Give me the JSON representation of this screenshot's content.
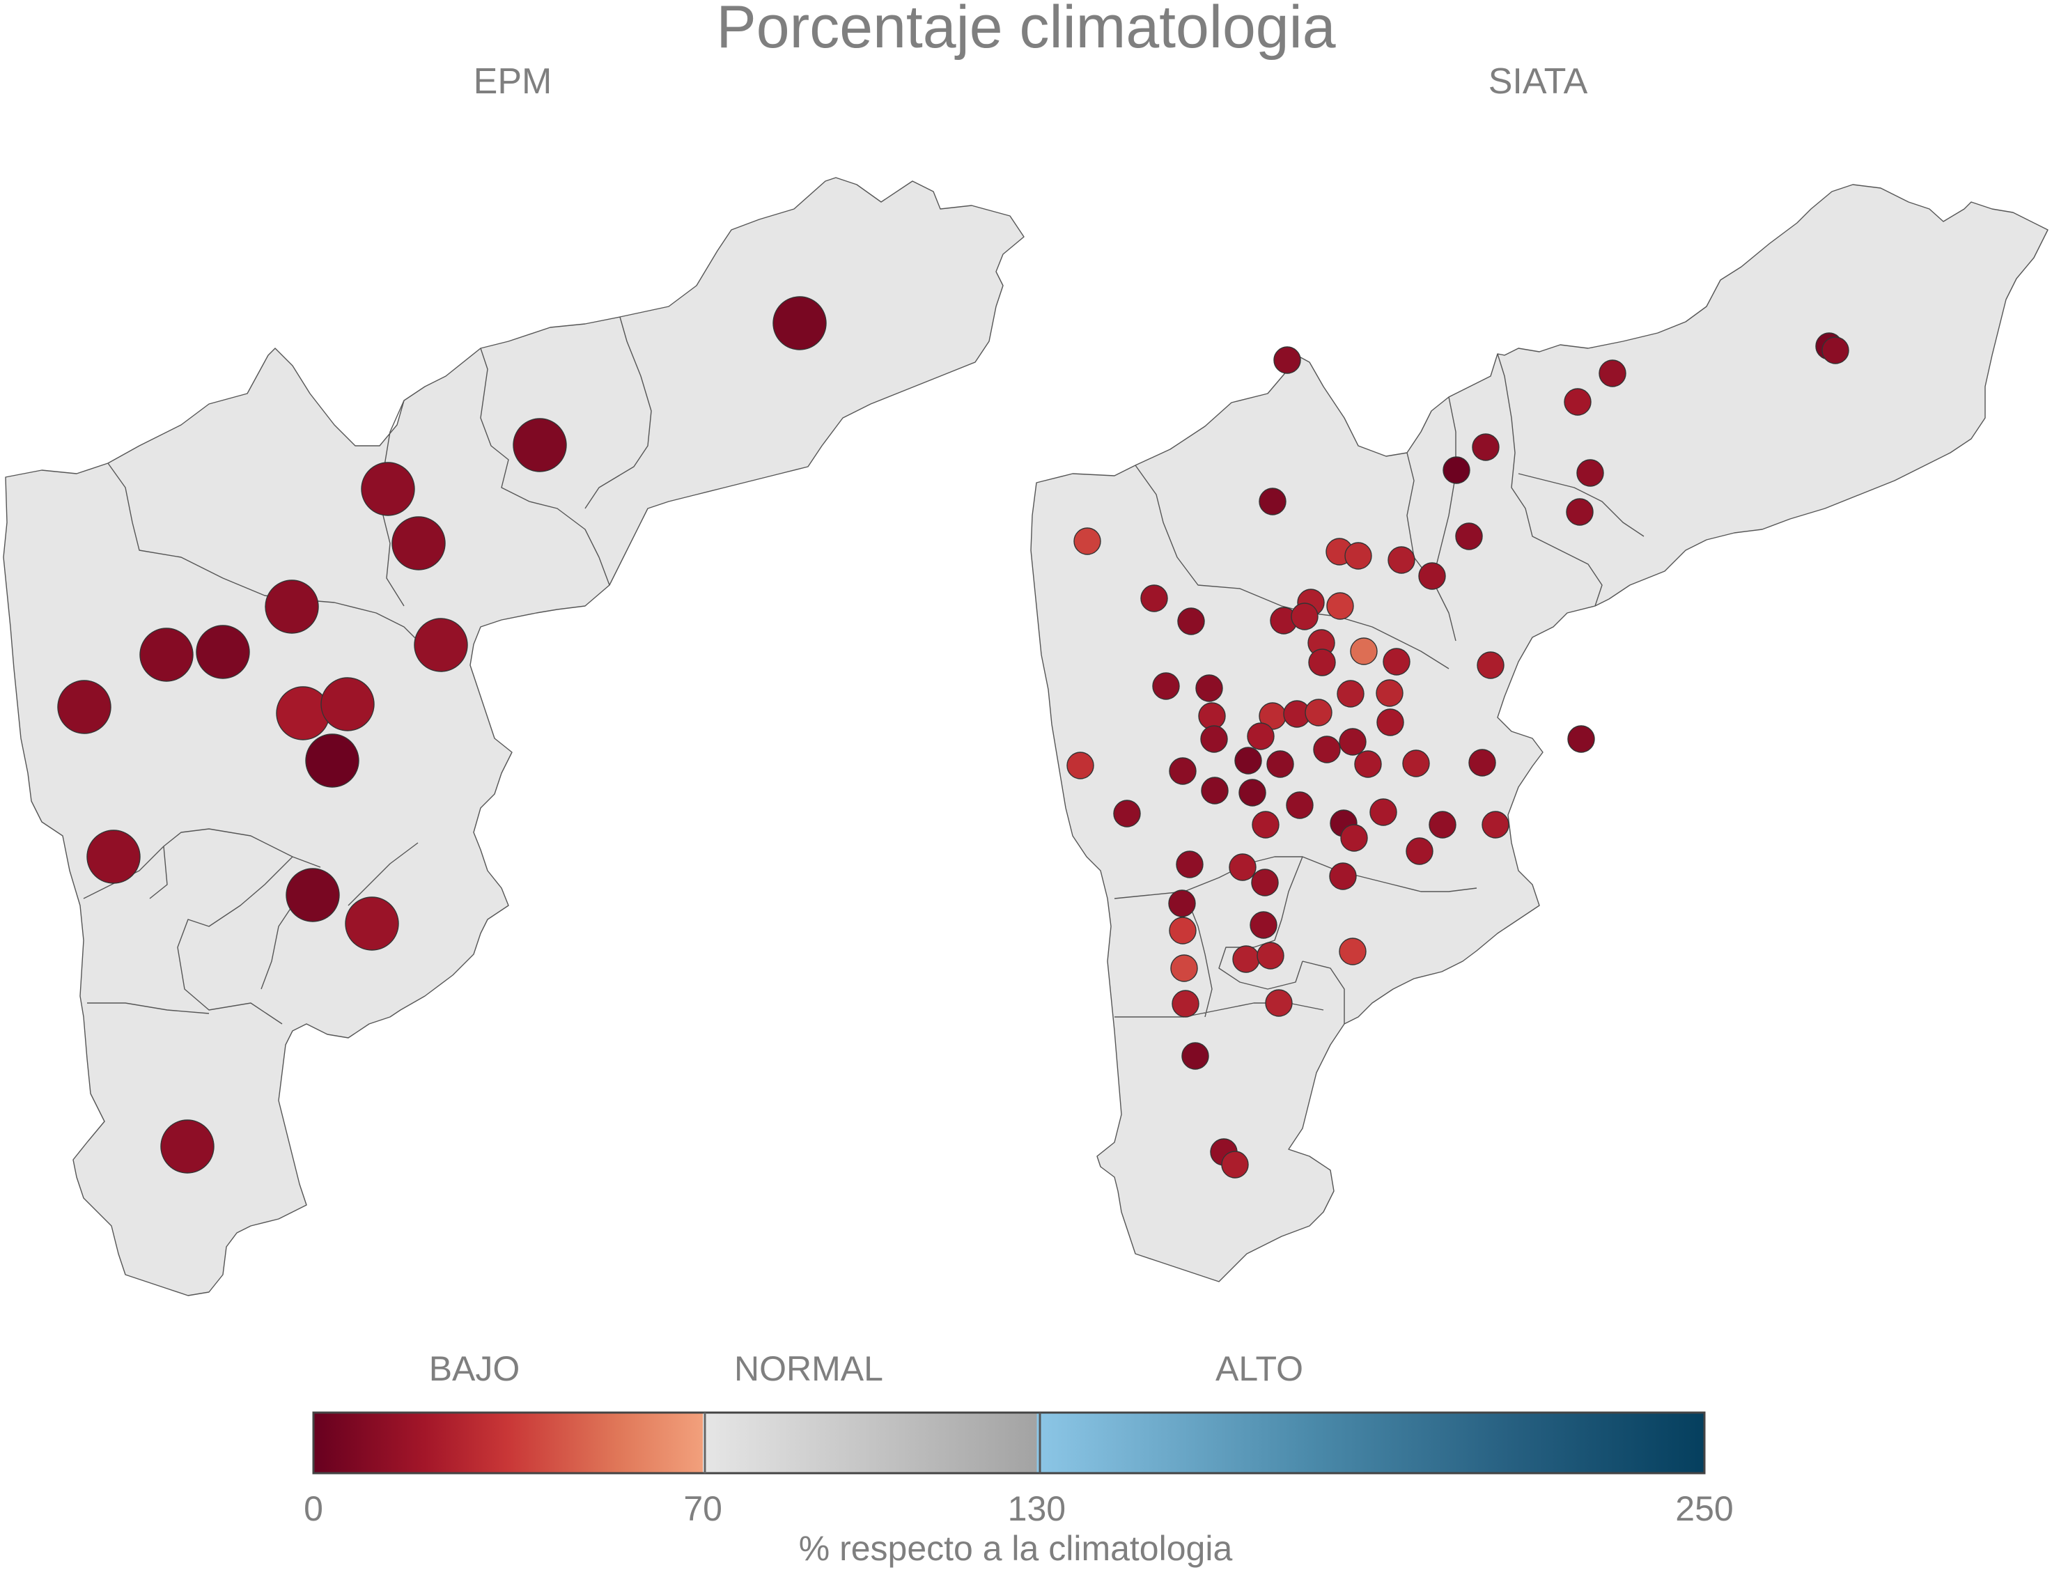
{
  "title": "Porcentaje climatologia",
  "panels": [
    {
      "name": "EPM",
      "title": "EPM",
      "marker": "large",
      "stations": [
        [
          1148,
          464,
          "r06"
        ],
        [
          775,
          639,
          "r08"
        ],
        [
          557,
          702,
          "r13"
        ],
        [
          601,
          780,
          "r12"
        ],
        [
          633,
          926,
          "r15"
        ],
        [
          419,
          871,
          "r12"
        ],
        [
          320,
          936,
          "r07"
        ],
        [
          239,
          940,
          "r10"
        ],
        [
          121,
          1015,
          "r12"
        ],
        [
          435,
          1024,
          "r21"
        ],
        [
          499,
          1011,
          "r18"
        ],
        [
          477,
          1092,
          "r02"
        ],
        [
          163,
          1230,
          "r14"
        ],
        [
          449,
          1285,
          "r06"
        ],
        [
          534,
          1326,
          "r17"
        ],
        [
          269,
          1646,
          "r13"
        ]
      ]
    },
    {
      "name": "SIATA",
      "title": "SIATA",
      "marker": "small",
      "stations": [
        [
          1848,
          517,
          "r12"
        ],
        [
          2315,
          536,
          "r15"
        ],
        [
          2626,
          497,
          "r06"
        ],
        [
          2635,
          503,
          "r12"
        ],
        [
          2265,
          577,
          "r20"
        ],
        [
          2133,
          642,
          "r13"
        ],
        [
          2091,
          675,
          "r02"
        ],
        [
          2283,
          679,
          "r14"
        ],
        [
          1827,
          720,
          "r08"
        ],
        [
          2268,
          735,
          "r14"
        ],
        [
          1561,
          777,
          "r38"
        ],
        [
          2109,
          770,
          "r13"
        ],
        [
          1923,
          792,
          "r32"
        ],
        [
          1950,
          798,
          "r30"
        ],
        [
          2012,
          804,
          "r24"
        ],
        [
          2056,
          827,
          "r18"
        ],
        [
          1657,
          859,
          "r18"
        ],
        [
          1882,
          865,
          "r24"
        ],
        [
          1924,
          870,
          "r36"
        ],
        [
          1710,
          892,
          "r12"
        ],
        [
          1843,
          891,
          "r19"
        ],
        [
          1873,
          885,
          "r22"
        ],
        [
          1897,
          923,
          "r24"
        ],
        [
          1958,
          935,
          "r52"
        ],
        [
          1898,
          951,
          "r21"
        ],
        [
          2005,
          950,
          "r22"
        ],
        [
          2140,
          955,
          "r23"
        ],
        [
          1674,
          985,
          "r13"
        ],
        [
          1736,
          988,
          "r12"
        ],
        [
          1939,
          996,
          "r24"
        ],
        [
          1995,
          995,
          "r28"
        ],
        [
          1740,
          1028,
          "r22"
        ],
        [
          1827,
          1028,
          "r30"
        ],
        [
          1862,
          1025,
          "r22"
        ],
        [
          1893,
          1023,
          "r29"
        ],
        [
          1743,
          1061,
          "r14"
        ],
        [
          1810,
          1057,
          "r21"
        ],
        [
          1996,
          1037,
          "r21"
        ],
        [
          1905,
          1076,
          "r16"
        ],
        [
          1942,
          1065,
          "r16"
        ],
        [
          1551,
          1099,
          "r32"
        ],
        [
          1698,
          1107,
          "r12"
        ],
        [
          1792,
          1092,
          "r06"
        ],
        [
          1838,
          1097,
          "r12"
        ],
        [
          1964,
          1097,
          "r21"
        ],
        [
          2033,
          1096,
          "r23"
        ],
        [
          2128,
          1095,
          "r14"
        ],
        [
          2270,
          1061,
          "r10"
        ],
        [
          1744,
          1135,
          "r10"
        ],
        [
          1798,
          1138,
          "r08"
        ],
        [
          1618,
          1168,
          "r13"
        ],
        [
          1866,
          1156,
          "r14"
        ],
        [
          1929,
          1182,
          "r07"
        ],
        [
          1986,
          1166,
          "r21"
        ],
        [
          2071,
          1184,
          "r14"
        ],
        [
          1944,
          1203,
          "r21"
        ],
        [
          2147,
          1184,
          "r22"
        ],
        [
          2038,
          1222,
          "r19"
        ],
        [
          1817,
          1184,
          "r21"
        ],
        [
          1708,
          1241,
          "r13"
        ],
        [
          1784,
          1245,
          "r22"
        ],
        [
          1816,
          1267,
          "r16"
        ],
        [
          1928,
          1258,
          "r19"
        ],
        [
          1697,
          1297,
          "r11"
        ],
        [
          1814,
          1328,
          "r14"
        ],
        [
          1698,
          1336,
          "r35"
        ],
        [
          1789,
          1377,
          "r25"
        ],
        [
          1824,
          1372,
          "r24"
        ],
        [
          1942,
          1366,
          "r36"
        ],
        [
          1700,
          1390,
          "r40"
        ],
        [
          1836,
          1440,
          "r26"
        ],
        [
          1702,
          1441,
          "r24"
        ],
        [
          1716,
          1516,
          "r08"
        ],
        [
          1757,
          1654,
          "r14"
        ],
        [
          1773,
          1672,
          "r23"
        ]
      ]
    }
  ],
  "legend": {
    "categories": [
      "BAJO",
      "NORMAL",
      "ALTO"
    ],
    "ticks": [
      {
        "label": "0",
        "value": 0
      },
      {
        "label": "70",
        "value": 70
      },
      {
        "label": "130",
        "value": 130
      },
      {
        "label": "250",
        "value": 250
      }
    ],
    "min": 0,
    "max": 250,
    "ramp": [
      [
        0,
        "#67001f"
      ],
      [
        20,
        "#a31629"
      ],
      [
        35,
        "#c93737"
      ],
      [
        55,
        "#e07859"
      ],
      [
        70,
        "#f2a07c"
      ],
      [
        70,
        "#e6e6e6"
      ],
      [
        130,
        "#a3a3a3"
      ],
      [
        130,
        "#8cc6e6"
      ],
      [
        180,
        "#4a89a9"
      ],
      [
        215,
        "#276081"
      ],
      [
        250,
        "#053f5e"
      ]
    ],
    "xlabel": "% respecto a la climatologia"
  }
}
